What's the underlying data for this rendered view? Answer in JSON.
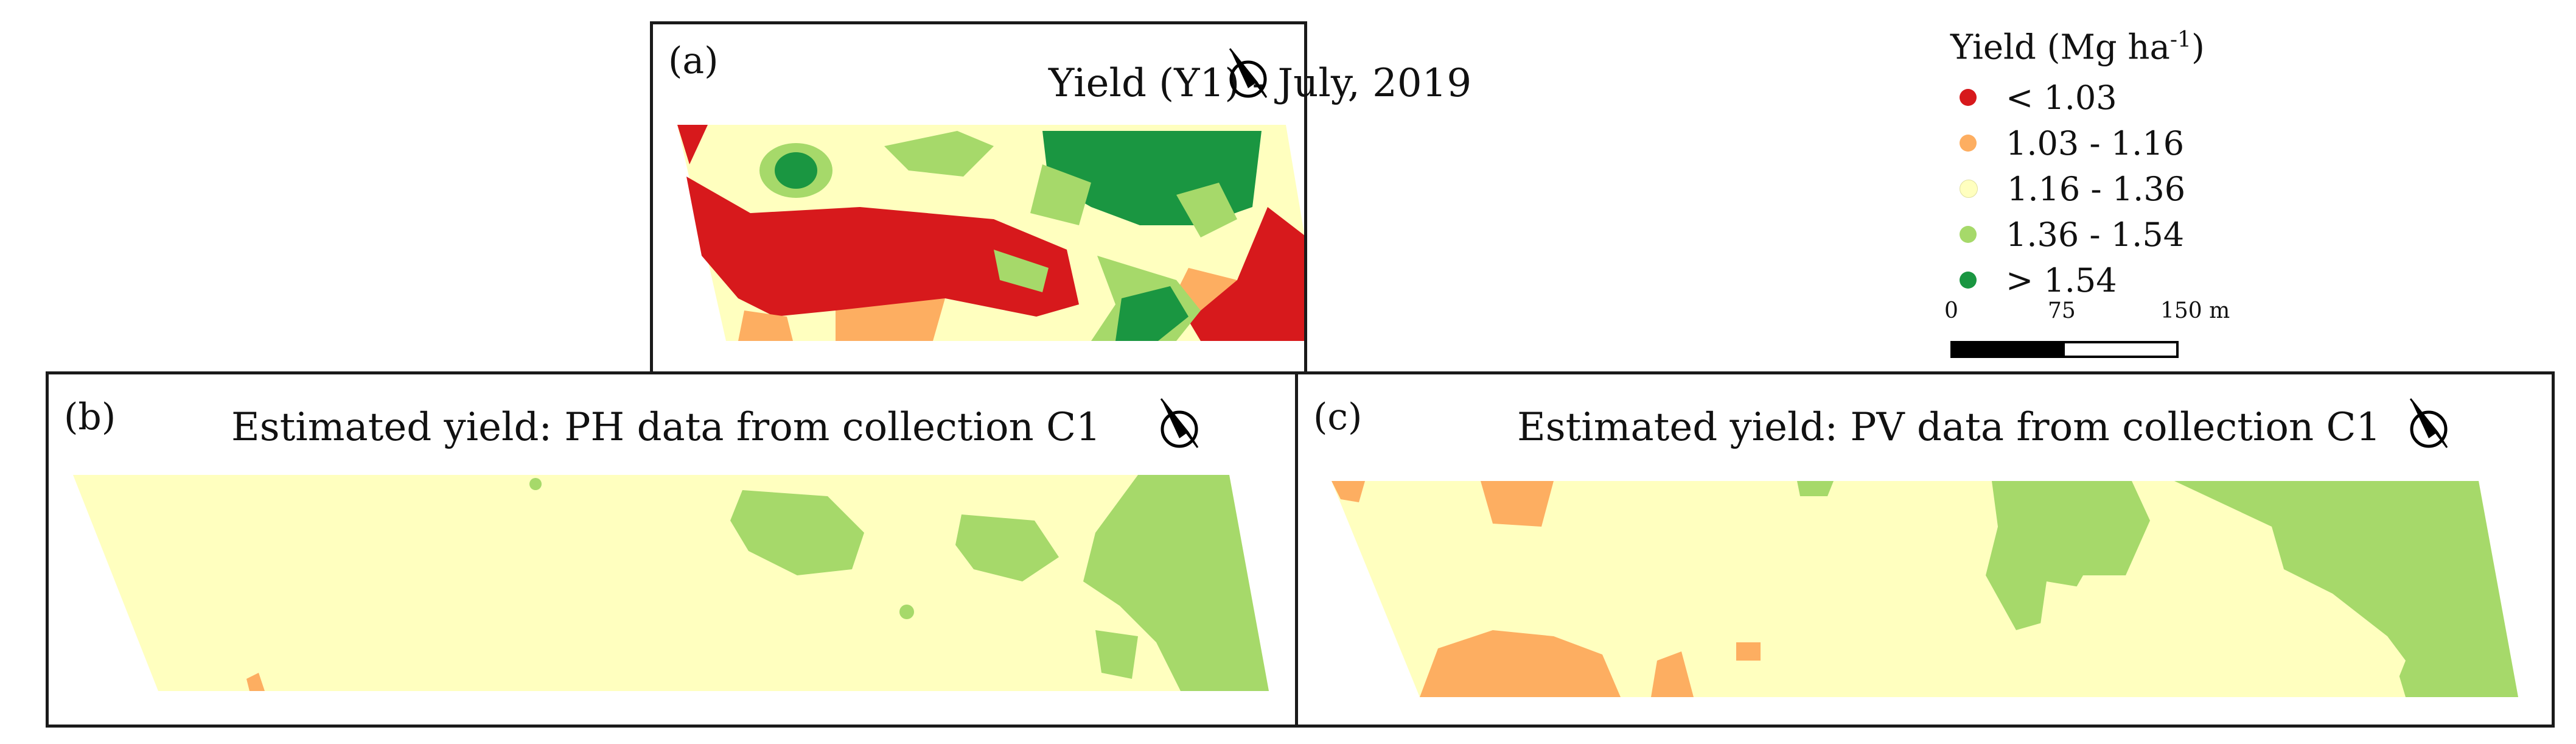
{
  "panels": {
    "a": {
      "label": "(a)",
      "title": "Yield (Y1) - July, 2019"
    },
    "b": {
      "label": "(b)",
      "title": "Estimated yield: PH data from collection C1"
    },
    "c": {
      "label": "(c)",
      "title": "Estimated yield: PV data from collection C1"
    }
  },
  "legend": {
    "title": "Yield (Mg ha",
    "title_sup": "-1",
    "title_close": ")",
    "classes": [
      {
        "label": "< 1.03",
        "color": "#d7191c"
      },
      {
        "label": "1.03 - 1.16",
        "color": "#fdae61"
      },
      {
        "label": "1.16 - 1.36",
        "color": "#ffffbf"
      },
      {
        "label": "1.36 - 1.54",
        "color": "#a6d96a"
      },
      {
        "label": "> 1.54",
        "color": "#1a9641"
      }
    ]
  },
  "scale": {
    "ticks": [
      "0",
      "75",
      "150 m"
    ]
  },
  "icons": {
    "north_arrow": "north-arrow-icon"
  }
}
